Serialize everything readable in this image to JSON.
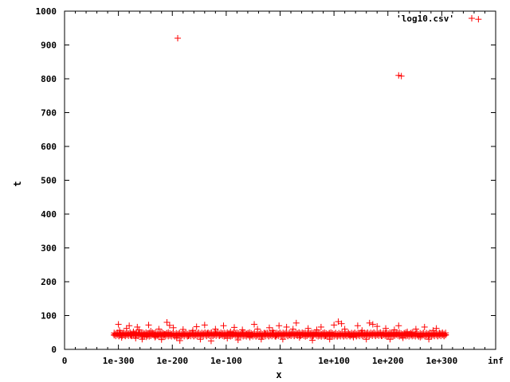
{
  "chart_data": {
    "type": "scatter",
    "xlabel": "x",
    "ylabel": "t",
    "x_scale": "log10 exponent of x (inf at right end)",
    "xlim": [
      -400,
      400
    ],
    "ylim": [
      0,
      1000
    ],
    "x_ticks": [
      {
        "value": -400,
        "label": "0"
      },
      {
        "value": -300,
        "label": "1e-300"
      },
      {
        "value": -200,
        "label": "1e-200"
      },
      {
        "value": -100,
        "label": "1e-100"
      },
      {
        "value": 0,
        "label": "1"
      },
      {
        "value": 100,
        "label": "1e+100"
      },
      {
        "value": 200,
        "label": "1e+200"
      },
      {
        "value": 300,
        "label": "1e+300"
      },
      {
        "value": 400,
        "label": "inf"
      }
    ],
    "y_ticks": [
      0,
      100,
      200,
      300,
      400,
      500,
      600,
      700,
      800,
      900,
      1000
    ],
    "grid": false,
    "legend_position": "top-right",
    "series": [
      {
        "name": "'log10.csv'",
        "color": "#ff0000",
        "marker": "plus",
        "band": {
          "x_from": -308,
          "x_to": 308,
          "t_min": 38,
          "t_max": 50
        },
        "x": [
          -300,
          -298,
          -294,
          -290,
          -285,
          -280,
          -277,
          -272,
          -268,
          -265,
          -262,
          -256,
          -252,
          -248,
          -244,
          -240,
          -232,
          -225,
          -220,
          -215,
          -210,
          -205,
          -198,
          -192,
          -186,
          -180,
          -170,
          -162,
          -155,
          -148,
          -140,
          -135,
          -128,
          -120,
          -112,
          -105,
          -98,
          -92,
          -85,
          -78,
          -70,
          -62,
          -56,
          -48,
          -42,
          -35,
          -28,
          -20,
          -14,
          -8,
          -2,
          5,
          12,
          18,
          24,
          30,
          36,
          44,
          52,
          60,
          68,
          76,
          84,
          92,
          100,
          108,
          114,
          120,
          128,
          136,
          144,
          152,
          160,
          166,
          172,
          180,
          188,
          196,
          204,
          212,
          220,
          228,
          236,
          244,
          252,
          260,
          268,
          276,
          284,
          290,
          296,
          302,
          -190,
          220,
          225,
          368
        ],
        "y": [
          74,
          56,
          35,
          48,
          62,
          70,
          41,
          52,
          33,
          66,
          58,
          30,
          45,
          37,
          72,
          54,
          36,
          60,
          29,
          44,
          80,
          71,
          64,
          34,
          26,
          59,
          40,
          56,
          67,
          30,
          72,
          48,
          25,
          60,
          42,
          70,
          33,
          52,
          65,
          28,
          58,
          46,
          36,
          74,
          60,
          30,
          48,
          64,
          56,
          38,
          70,
          30,
          66,
          42,
          60,
          78,
          35,
          48,
          62,
          27,
          58,
          66,
          40,
          30,
          72,
          82,
          76,
          60,
          44,
          36,
          70,
          56,
          30,
          78,
          74,
          68,
          40,
          62,
          30,
          58,
          70,
          34,
          52,
          44,
          60,
          36,
          66,
          30,
          56,
          62,
          48,
          44,
          920,
          810,
          808,
          976
        ]
      }
    ]
  }
}
